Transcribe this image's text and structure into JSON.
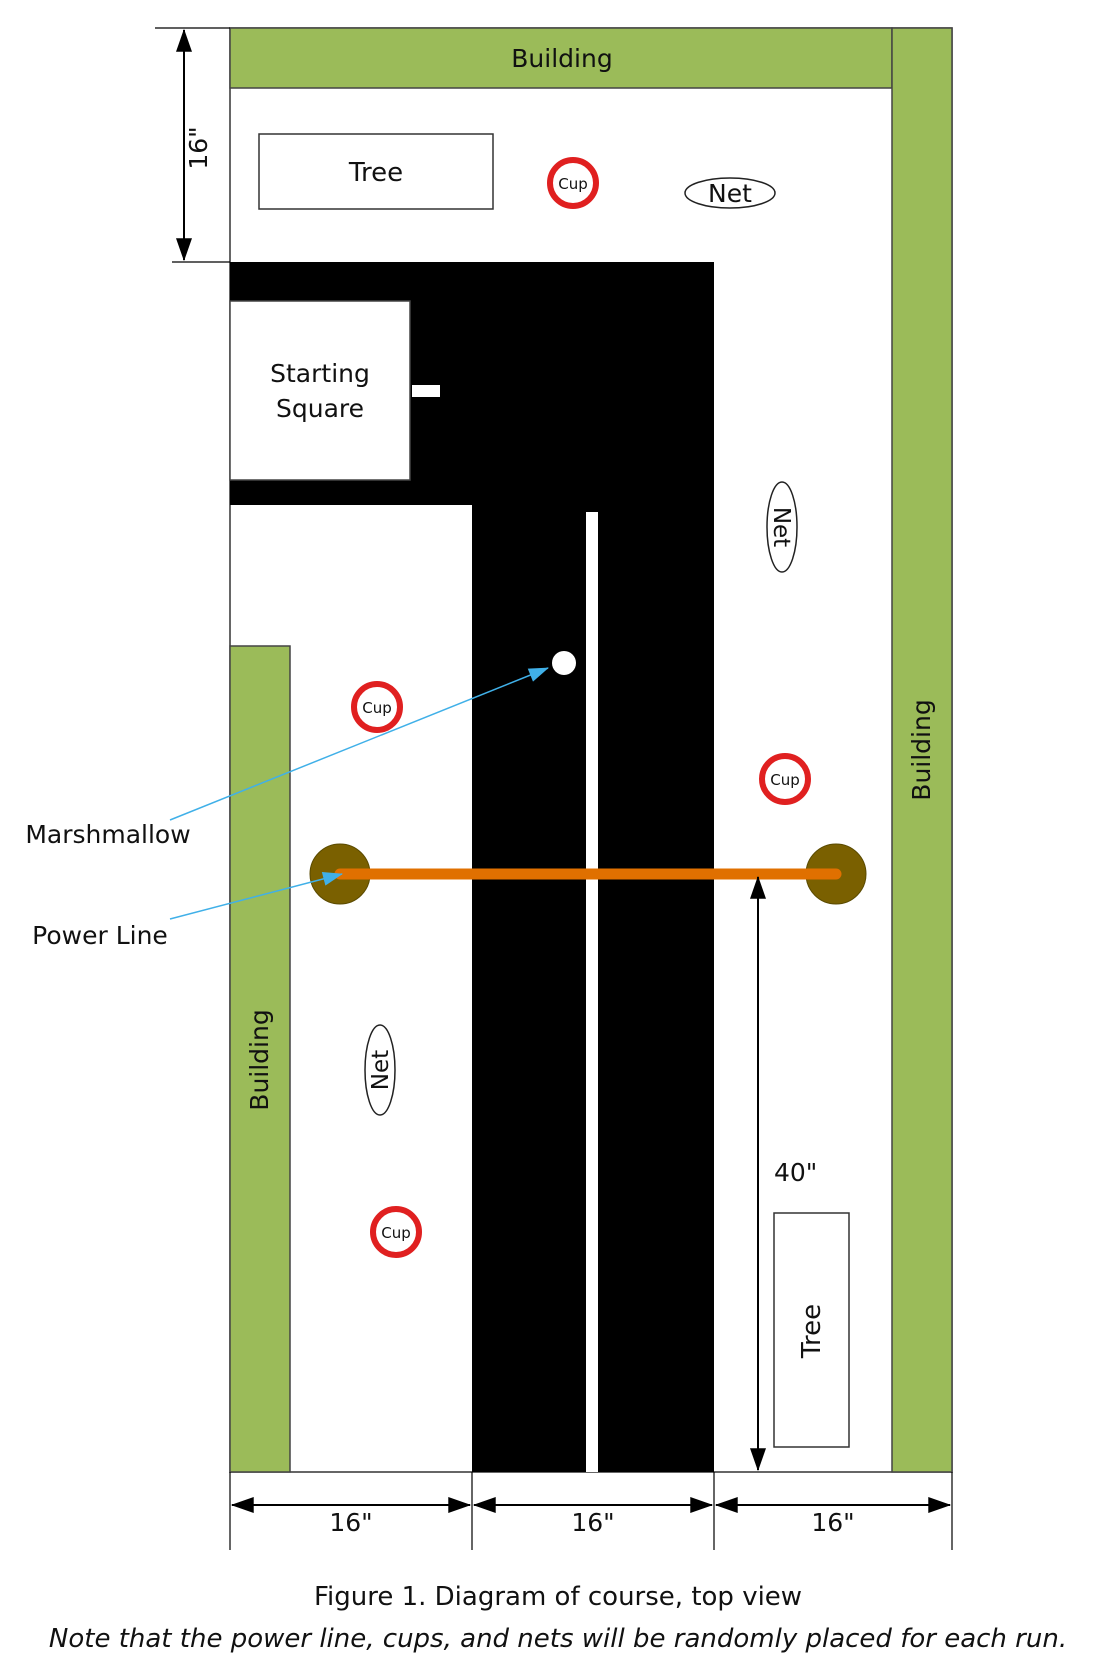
{
  "diagram": {
    "buildings": {
      "top": "Building",
      "right": "Building",
      "left": "Building"
    },
    "trees": {
      "top": "Tree",
      "bottom": "Tree"
    },
    "cups": [
      "Cup",
      "Cup",
      "Cup",
      "Cup"
    ],
    "nets": [
      "Net",
      "Net",
      "Net"
    ],
    "starting_square": [
      "Starting",
      "Square"
    ],
    "callouts": {
      "marshmallow": "Marshmallow",
      "power_line": "Power Line"
    },
    "dimensions": {
      "left_height": "16\"",
      "bottom_left": "16\"",
      "bottom_mid": "16\"",
      "bottom_right": "16\"",
      "power_line_height": "40\""
    }
  },
  "caption": {
    "title": "Figure 1. Diagram of course, top view",
    "note": "Note that the power line, cups, and nets will be randomly placed for each run."
  },
  "colors": {
    "building": "#9bbb59",
    "road": "#000000",
    "cup_ring": "#e02020",
    "power_line": "#e07000",
    "pole": "#7a6000",
    "callout_arrow": "#40b0e8"
  }
}
